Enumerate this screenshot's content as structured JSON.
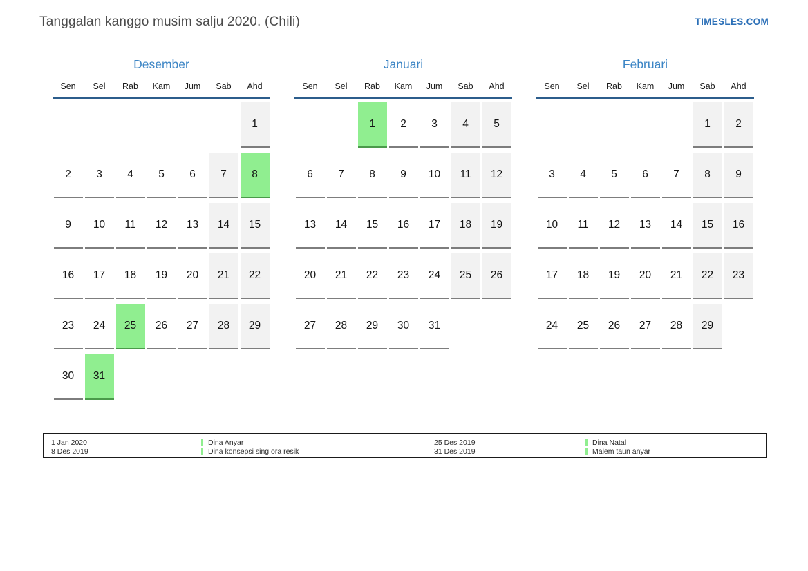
{
  "header": {
    "title": "Tanggalan kanggo musim salju 2020. (Chili)",
    "site_link": "TIMESLES.COM"
  },
  "weekdays": [
    "Sen",
    "Sel",
    "Rab",
    "Kam",
    "Jum",
    "Sab",
    "Ahd"
  ],
  "months": [
    {
      "name": "Desember",
      "weeks": [
        [
          0,
          0,
          0,
          0,
          0,
          0,
          1
        ],
        [
          2,
          3,
          4,
          5,
          6,
          7,
          8
        ],
        [
          9,
          10,
          11,
          12,
          13,
          14,
          15
        ],
        [
          16,
          17,
          18,
          19,
          20,
          21,
          22
        ],
        [
          23,
          24,
          25,
          26,
          27,
          28,
          29
        ],
        [
          30,
          31,
          0,
          0,
          0,
          0,
          0
        ]
      ],
      "holidays": [
        8,
        25,
        31
      ]
    },
    {
      "name": "Januari",
      "weeks": [
        [
          0,
          0,
          1,
          2,
          3,
          4,
          5
        ],
        [
          6,
          7,
          8,
          9,
          10,
          11,
          12
        ],
        [
          13,
          14,
          15,
          16,
          17,
          18,
          19
        ],
        [
          20,
          21,
          22,
          23,
          24,
          25,
          26
        ],
        [
          27,
          28,
          29,
          30,
          31,
          0,
          0
        ]
      ],
      "holidays": [
        1
      ]
    },
    {
      "name": "Februari",
      "weeks": [
        [
          0,
          0,
          0,
          0,
          0,
          1,
          2
        ],
        [
          3,
          4,
          5,
          6,
          7,
          8,
          9
        ],
        [
          10,
          11,
          12,
          13,
          14,
          15,
          16
        ],
        [
          17,
          18,
          19,
          20,
          21,
          22,
          23
        ],
        [
          24,
          25,
          26,
          27,
          28,
          29,
          0
        ]
      ],
      "holidays": []
    }
  ],
  "legend": {
    "groups": [
      {
        "dates": [
          "1 Jan 2020",
          "8 Des 2019"
        ],
        "labels": [
          "Dina Anyar",
          "Dina konsepsi sing ora resik"
        ]
      },
      {
        "dates": [
          "25 Des 2019",
          "31 Des 2019"
        ],
        "labels": [
          "Dina Natal",
          "Malem taun anyar"
        ]
      }
    ]
  },
  "colors": {
    "accent_blue": "#3c85c5",
    "header_line_blue": "#2c5d8c",
    "link_blue": "#2b6fb7",
    "holiday_green": "#90ee90",
    "holiday_underline_green": "#4a9a4a",
    "weekend_gray": "#f2f2f2",
    "cell_underline_gray": "#7d7d7d"
  }
}
